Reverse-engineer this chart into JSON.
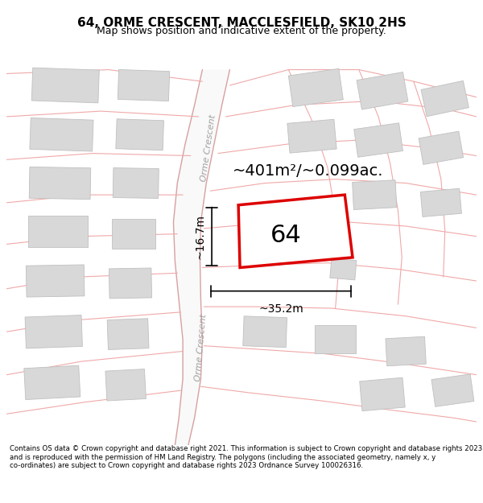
{
  "title": "64, ORME CRESCENT, MACCLESFIELD, SK10 2HS",
  "subtitle": "Map shows position and indicative extent of the property.",
  "footer": "Contains OS data © Crown copyright and database right 2021. This information is subject to Crown copyright and database rights 2023 and is reproduced with the permission of HM Land Registry. The polygons (including the associated geometry, namely x, y co-ordinates) are subject to Crown copyright and database rights 2023 Ordnance Survey 100026316.",
  "area_text": "~401m²/~0.099ac.",
  "width_text": "~35.2m",
  "height_text": "~16.7m",
  "plot_number": "64",
  "street_label": "Orme Crescent",
  "road_fill": "#ffffff",
  "road_edge_color": "#f0c0c0",
  "road_center_color": "#e8b8b8",
  "building_fill": "#d8d8d8",
  "building_edge": "#c0c0c0",
  "map_bg": "#f8f8f8",
  "line_color": "#f0a8a8",
  "plot_fill": "#ffffff",
  "plot_edge": "#dd0000",
  "title_fontsize": 11,
  "subtitle_fontsize": 9,
  "footer_fontsize": 6.2,
  "dim_fontsize": 10,
  "area_fontsize": 14,
  "plot_label_fontsize": 22,
  "street_fontsize": 8
}
